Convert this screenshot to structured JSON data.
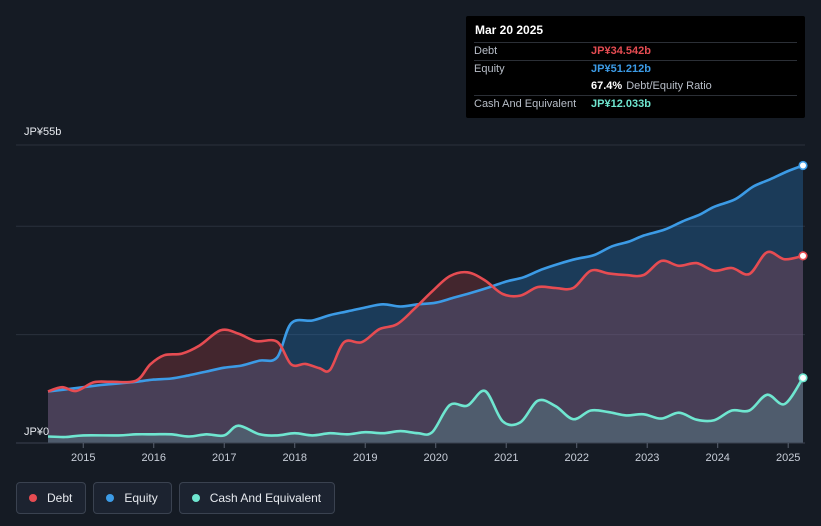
{
  "tooltip": {
    "date": "Mar 20 2025",
    "debt_label": "Debt",
    "debt_value": "JP¥34.542b",
    "equity_label": "Equity",
    "equity_value": "JP¥51.212b",
    "ratio_value": "67.4%",
    "ratio_label": "Debt/Equity Ratio",
    "cash_label": "Cash And Equivalent",
    "cash_value": "JP¥12.033b"
  },
  "legend": [
    {
      "label": "Debt",
      "color": "#e64c52"
    },
    {
      "label": "Equity",
      "color": "#3c9be6"
    },
    {
      "label": "Cash And Equivalent",
      "color": "#6fe6d0"
    }
  ],
  "chart_data": {
    "type": "area",
    "ylim": [
      0,
      55
    ],
    "y_tick_labels": [
      "JP¥55b",
      "JP¥0"
    ],
    "x_tick_labels": [
      "2015",
      "2016",
      "2017",
      "2018",
      "2019",
      "2020",
      "2021",
      "2022",
      "2023",
      "2024",
      "2025"
    ],
    "unit": "JP¥ billions",
    "series": [
      {
        "name": "Debt",
        "color": "#e64c52",
        "points": [
          [
            2014.5,
            9.5
          ],
          [
            2014.7,
            10.3
          ],
          [
            2014.9,
            9.6
          ],
          [
            2015.15,
            11.2
          ],
          [
            2015.4,
            11.3
          ],
          [
            2015.75,
            11.5
          ],
          [
            2015.95,
            14.5
          ],
          [
            2016.15,
            16.2
          ],
          [
            2016.4,
            16.5
          ],
          [
            2016.65,
            18.0
          ],
          [
            2016.95,
            20.8
          ],
          [
            2017.2,
            20.2
          ],
          [
            2017.45,
            18.8
          ],
          [
            2017.75,
            18.7
          ],
          [
            2017.95,
            14.5
          ],
          [
            2018.15,
            14.6
          ],
          [
            2018.35,
            13.8
          ],
          [
            2018.5,
            13.5
          ],
          [
            2018.7,
            18.6
          ],
          [
            2018.95,
            18.6
          ],
          [
            2019.2,
            21.0
          ],
          [
            2019.45,
            21.9
          ],
          [
            2019.7,
            24.8
          ],
          [
            2019.95,
            28.0
          ],
          [
            2020.2,
            30.8
          ],
          [
            2020.45,
            31.5
          ],
          [
            2020.7,
            30.0
          ],
          [
            2020.95,
            27.5
          ],
          [
            2021.2,
            27.2
          ],
          [
            2021.45,
            28.8
          ],
          [
            2021.7,
            28.6
          ],
          [
            2021.95,
            28.6
          ],
          [
            2022.2,
            31.8
          ],
          [
            2022.45,
            31.3
          ],
          [
            2022.7,
            31.0
          ],
          [
            2022.95,
            31.0
          ],
          [
            2023.2,
            33.6
          ],
          [
            2023.45,
            32.7
          ],
          [
            2023.7,
            33.2
          ],
          [
            2023.95,
            31.8
          ],
          [
            2024.2,
            32.3
          ],
          [
            2024.45,
            31.2
          ],
          [
            2024.7,
            35.2
          ],
          [
            2024.95,
            33.9
          ],
          [
            2025.21,
            34.54
          ]
        ]
      },
      {
        "name": "Equity",
        "color": "#3c9be6",
        "points": [
          [
            2014.5,
            9.5
          ],
          [
            2014.75,
            9.9
          ],
          [
            2015.0,
            10.3
          ],
          [
            2015.25,
            10.7
          ],
          [
            2015.5,
            11.0
          ],
          [
            2015.75,
            11.3
          ],
          [
            2016.0,
            11.7
          ],
          [
            2016.25,
            11.9
          ],
          [
            2016.5,
            12.5
          ],
          [
            2016.75,
            13.2
          ],
          [
            2017.0,
            13.9
          ],
          [
            2017.25,
            14.3
          ],
          [
            2017.5,
            15.2
          ],
          [
            2017.75,
            15.8
          ],
          [
            2017.95,
            22.1
          ],
          [
            2018.25,
            22.6
          ],
          [
            2018.5,
            23.6
          ],
          [
            2018.75,
            24.3
          ],
          [
            2019.0,
            25.0
          ],
          [
            2019.25,
            25.6
          ],
          [
            2019.5,
            25.2
          ],
          [
            2019.75,
            25.6
          ],
          [
            2020.0,
            25.9
          ],
          [
            2020.25,
            26.8
          ],
          [
            2020.5,
            27.7
          ],
          [
            2020.75,
            28.7
          ],
          [
            2021.0,
            29.8
          ],
          [
            2021.25,
            30.6
          ],
          [
            2021.5,
            32.0
          ],
          [
            2021.75,
            33.1
          ],
          [
            2022.0,
            34.0
          ],
          [
            2022.25,
            34.7
          ],
          [
            2022.5,
            36.3
          ],
          [
            2022.75,
            37.2
          ],
          [
            2022.95,
            38.3
          ],
          [
            2023.25,
            39.4
          ],
          [
            2023.5,
            40.9
          ],
          [
            2023.75,
            42.2
          ],
          [
            2023.95,
            43.6
          ],
          [
            2024.25,
            45.0
          ],
          [
            2024.5,
            47.3
          ],
          [
            2024.75,
            48.7
          ],
          [
            2025.0,
            50.2
          ],
          [
            2025.21,
            51.21
          ]
        ]
      },
      {
        "name": "Cash And Equivalent",
        "color": "#6fe6d0",
        "points": [
          [
            2014.5,
            1.2
          ],
          [
            2014.75,
            1.1
          ],
          [
            2015.0,
            1.4
          ],
          [
            2015.5,
            1.4
          ],
          [
            2015.75,
            1.6
          ],
          [
            2016.0,
            1.6
          ],
          [
            2016.25,
            1.6
          ],
          [
            2016.5,
            1.2
          ],
          [
            2016.75,
            1.6
          ],
          [
            2017.0,
            1.4
          ],
          [
            2017.2,
            3.2
          ],
          [
            2017.5,
            1.6
          ],
          [
            2017.75,
            1.4
          ],
          [
            2018.0,
            1.8
          ],
          [
            2018.25,
            1.4
          ],
          [
            2018.5,
            1.8
          ],
          [
            2018.75,
            1.6
          ],
          [
            2019.0,
            2.0
          ],
          [
            2019.25,
            1.8
          ],
          [
            2019.5,
            2.2
          ],
          [
            2019.75,
            1.8
          ],
          [
            2019.95,
            2.0
          ],
          [
            2020.2,
            7.0
          ],
          [
            2020.45,
            6.9
          ],
          [
            2020.7,
            9.6
          ],
          [
            2020.95,
            4.0
          ],
          [
            2021.2,
            3.8
          ],
          [
            2021.45,
            7.8
          ],
          [
            2021.7,
            6.8
          ],
          [
            2021.95,
            4.4
          ],
          [
            2022.2,
            6.0
          ],
          [
            2022.45,
            5.7
          ],
          [
            2022.7,
            5.1
          ],
          [
            2022.95,
            5.3
          ],
          [
            2023.2,
            4.5
          ],
          [
            2023.45,
            5.6
          ],
          [
            2023.7,
            4.3
          ],
          [
            2023.95,
            4.2
          ],
          [
            2024.2,
            6.0
          ],
          [
            2024.45,
            6.0
          ],
          [
            2024.7,
            8.9
          ],
          [
            2024.95,
            7.2
          ],
          [
            2025.21,
            12.03
          ]
        ]
      }
    ]
  }
}
